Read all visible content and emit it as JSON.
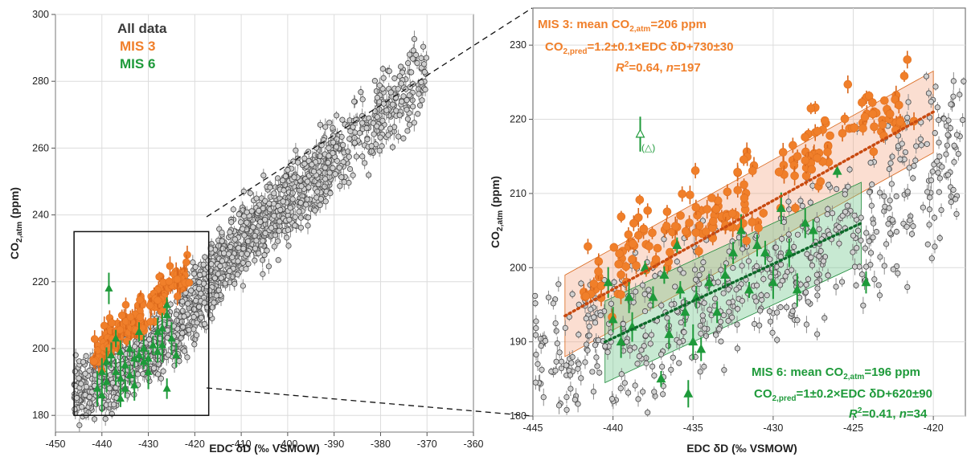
{
  "left_panel": {
    "x_axis_label": "EDC δD (‰ VSMOW)",
    "y_axis_label_main": "CO",
    "y_axis_label_sub": "2,atm",
    "y_axis_label_unit": " (ppm)",
    "legend": [
      {
        "label": "All data",
        "color": "#3a3a3a"
      },
      {
        "label": "MIS 3",
        "color": "#f07f2a"
      },
      {
        "label": "MIS 6",
        "color": "#1e9a3a"
      }
    ]
  },
  "right_panel": {
    "x_axis_label": "EDC δD (‰ VSMOW)",
    "y_axis_label_main": "CO",
    "y_axis_label_sub": "2,atm",
    "y_axis_label_unit": " (ppm)",
    "outlier_label": "(△)",
    "mis3_annotation": {
      "line1": "MIS 3: mean CO",
      "line1_sub": "2,atm",
      "line1_end": "=206 ppm",
      "line2": "CO",
      "line2_sub": "2,pred",
      "line2_end": "=1.2±0.1×EDC δD+730±30",
      "line3_r": "R",
      "line3_sup": "2",
      "line3_end": "=0.64, ",
      "line3_n": "n",
      "line3_nval": "=197",
      "color": "#f07f2a"
    },
    "mis6_annotation": {
      "line1": "MIS 6: mean CO",
      "line1_sub": "2,atm",
      "line1_end": "=196 ppm",
      "line2": "CO",
      "line2_sub": "2,pred",
      "line2_end": "=1±0.2×EDC δD+620±90",
      "line3_r": "R",
      "line3_sup": "2",
      "line3_end": "=0.41, ",
      "line3_n": "n",
      "line3_nval": "=34",
      "color": "#1e9a3a"
    }
  },
  "chart_data": [
    {
      "type": "scatter",
      "panel": "left",
      "xlabel": "EDC δD (‰ VSMOW)",
      "ylabel": "CO2,atm (ppm)",
      "xlim": [
        -450,
        -360
      ],
      "ylim": [
        175,
        300
      ],
      "x_ticks": [
        -450,
        -440,
        -430,
        -420,
        -410,
        -400,
        -390,
        -380,
        -370,
        -360
      ],
      "y_ticks": [
        180,
        200,
        220,
        240,
        260,
        280,
        300
      ],
      "grid": true,
      "legend_position": "top-left",
      "series": [
        {
          "name": "All data",
          "color": "#c8c8c8",
          "trend": {
            "x": [
              -444,
              -426,
              -410,
              -395,
              -380,
              -370
            ],
            "y": [
              187,
              203,
              232,
              250,
              270,
              281
            ]
          },
          "x_range": [
            -446,
            -370
          ],
          "y_scatter": 10
        },
        {
          "name": "MIS 3",
          "color": "#f07f2a",
          "trend": {
            "x": [
              -442,
              -421
            ],
            "y": [
              198,
              223
            ]
          }
        },
        {
          "name": "MIS 6",
          "color": "#1e9a3a",
          "points": [
            [
              -438.5,
              218
            ],
            [
              -440,
              193
            ],
            [
              -439,
              190
            ],
            [
              -438,
              198
            ],
            [
              -437,
              193
            ],
            [
              -436,
              199
            ],
            [
              -436,
              185
            ],
            [
              -435,
              195
            ],
            [
              -434,
              192
            ],
            [
              -433,
              197
            ],
            [
              -432,
              205
            ],
            [
              -431,
              200
            ],
            [
              -430,
              197
            ],
            [
              -429,
              201
            ],
            [
              -428,
              205
            ],
            [
              -427,
              206
            ],
            [
              -426,
              213
            ],
            [
              -426,
              188
            ],
            [
              -425,
              203
            ],
            [
              -424,
              198
            ],
            [
              -441,
              188
            ],
            [
              -440,
              186
            ],
            [
              -439,
              196
            ],
            [
              -437,
              203
            ],
            [
              -435,
              188
            ],
            [
              -433,
              189
            ],
            [
              -431,
              196
            ],
            [
              -430,
              193
            ],
            [
              -428,
              199
            ],
            [
              -427,
              201
            ],
            [
              -426,
              210
            ],
            [
              -436,
              191
            ],
            [
              -434,
              200
            ],
            [
              -432,
              198
            ]
          ]
        }
      ],
      "zoom_box": {
        "x": [
          -446,
          -417
        ],
        "y": [
          180,
          235
        ]
      }
    },
    {
      "type": "scatter",
      "panel": "right",
      "xlabel": "EDC δD (‰ VSMOW)",
      "ylabel": "CO2,atm (ppm)",
      "xlim": [
        -445,
        -418
      ],
      "ylim": [
        180,
        235
      ],
      "x_ticks": [
        -445,
        -440,
        -435,
        -430,
        -425,
        -420
      ],
      "y_ticks": [
        180,
        190,
        200,
        210,
        220,
        230
      ],
      "grid": true,
      "series": [
        {
          "name": "All data",
          "color": "#c8c8c8"
        },
        {
          "name": "MIS 3",
          "color": "#f07f2a",
          "regression": {
            "x": [
              -443,
              -420
            ],
            "y": [
              193.5,
              221
            ]
          },
          "band_halfwidth": 5.5
        },
        {
          "name": "MIS 6",
          "color": "#1e9a3a",
          "regression": {
            "x": [
              -440.5,
              -424.5
            ],
            "y": [
              190,
              206
            ]
          },
          "band_halfwidth": 5.5,
          "points": [
            [
              -438.3,
              218
            ],
            [
              -440.3,
              198
            ],
            [
              -440,
              193
            ],
            [
              -439.5,
              190
            ],
            [
              -439,
              196
            ],
            [
              -438.8,
              192
            ],
            [
              -438,
              200
            ],
            [
              -437.5,
              196
            ],
            [
              -437,
              185
            ],
            [
              -436.8,
              199
            ],
            [
              -436.5,
              191
            ],
            [
              -436,
              203
            ],
            [
              -435.8,
              197
            ],
            [
              -435.5,
              194
            ],
            [
              -435.3,
              183
            ],
            [
              -435,
              190
            ],
            [
              -434.8,
              196
            ],
            [
              -434.5,
              189
            ],
            [
              -434,
              198
            ],
            [
              -433.5,
              194
            ],
            [
              -433,
              199
            ],
            [
              -432.5,
              202
            ],
            [
              -432,
              205
            ],
            [
              -431.5,
              197
            ],
            [
              -431,
              203
            ],
            [
              -430.5,
              202
            ],
            [
              -430,
              198
            ],
            [
              -429.5,
              208
            ],
            [
              -429,
              202
            ],
            [
              -428.5,
              197
            ],
            [
              -428,
              206
            ],
            [
              -427.5,
              205
            ],
            [
              -426,
              213
            ],
            [
              -424.2,
              198
            ]
          ]
        }
      ]
    }
  ]
}
